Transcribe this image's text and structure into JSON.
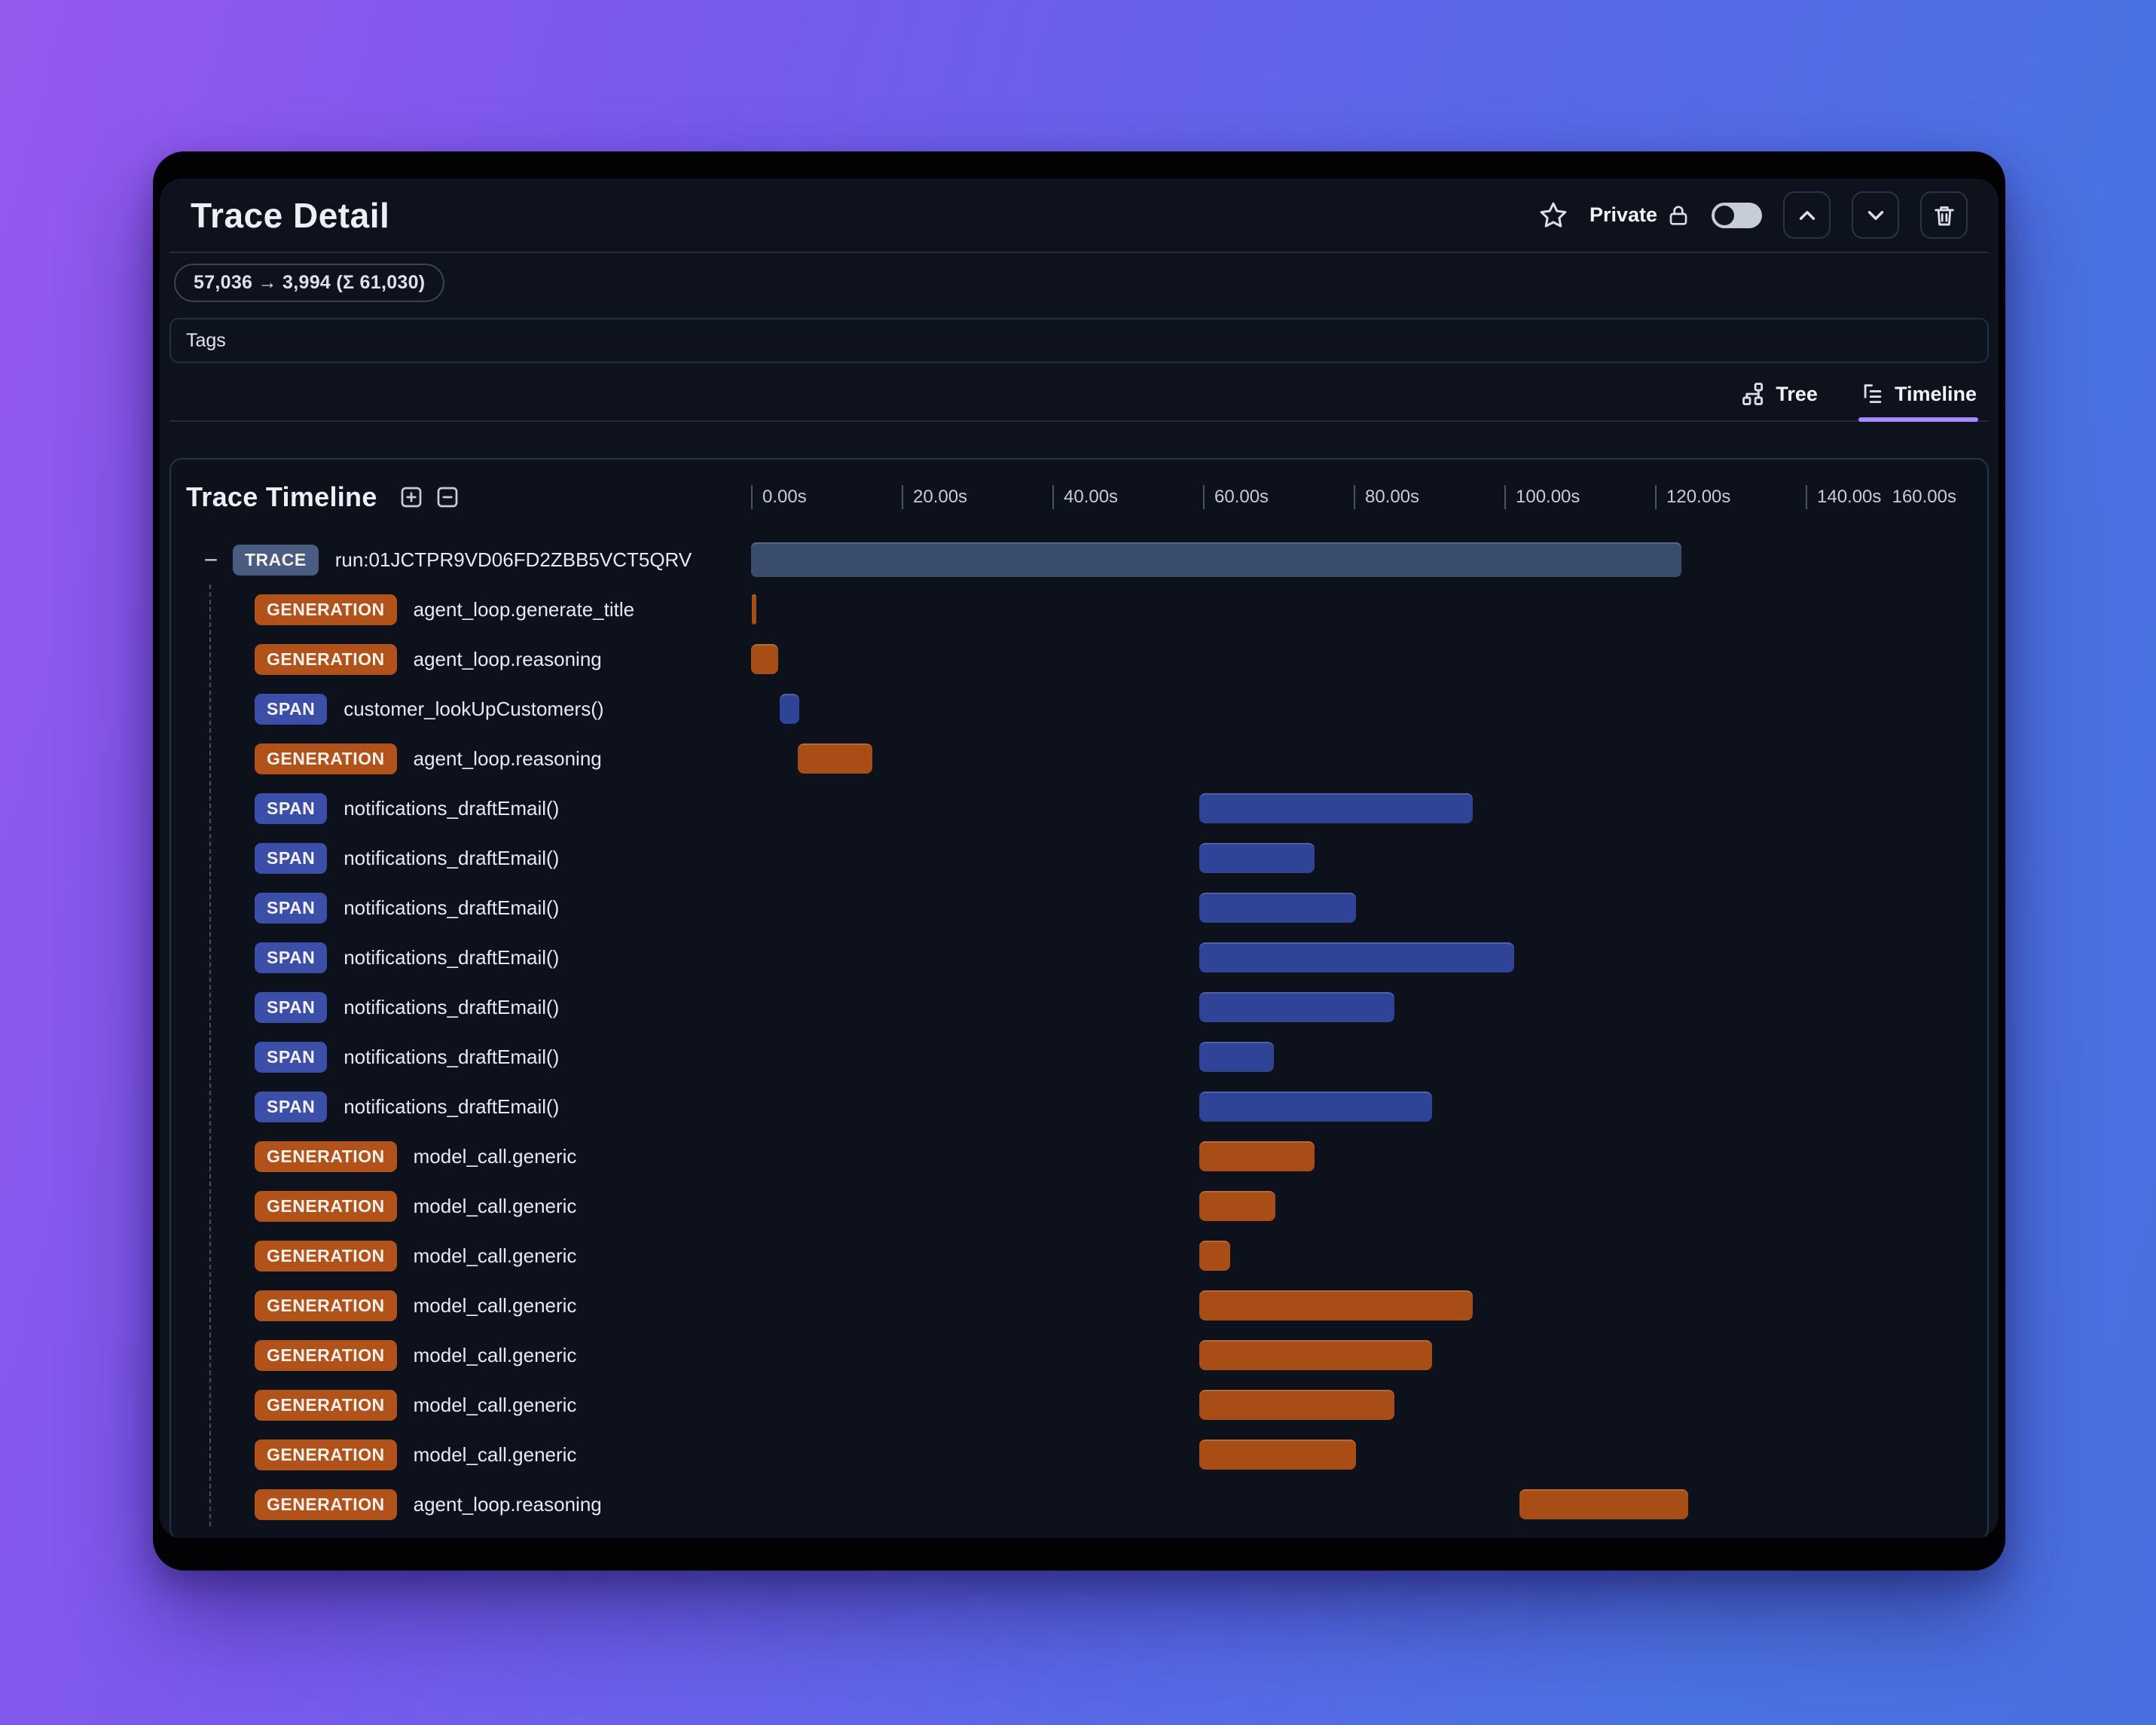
{
  "trace_header": {
    "title": "Trace Detail",
    "privacy": {
      "label": "Private",
      "toggle_state": "off"
    }
  },
  "token_usage_badge": "57,036 → 3,994 (Σ 61,030)",
  "tags_input": {
    "label": "Tags"
  },
  "view_tabs": [
    {
      "id": "tree",
      "label": "Tree",
      "icon": "tree-icon",
      "active": false
    },
    {
      "id": "timeline",
      "label": "Timeline",
      "icon": "list-tree-icon",
      "active": true
    }
  ],
  "timeline_panel": {
    "title": "Trace Timeline",
    "axis": {
      "unit": "s",
      "max_s": 160,
      "tick_step_s": 20,
      "ticks": [
        {
          "label": "0.00s",
          "t": 0
        },
        {
          "label": "20.00s",
          "t": 20
        },
        {
          "label": "40.00s",
          "t": 40
        },
        {
          "label": "60.00s",
          "t": 60
        },
        {
          "label": "80.00s",
          "t": 80
        },
        {
          "label": "100.00s",
          "t": 100
        },
        {
          "label": "120.00s",
          "t": 120
        },
        {
          "label": "140.00s",
          "t": 140
        },
        {
          "label": "160.00s",
          "t": 160,
          "no_tick_line": true,
          "right_align": true
        }
      ]
    },
    "span_types": {
      "TRACE": {
        "badge_bg": "#4A5C80",
        "bar_bg": "#3A4C6C"
      },
      "GENERATION": {
        "badge_bg": "#B0521A",
        "bar_bg": "#A84D15"
      },
      "SPAN": {
        "badge_bg": "#3B4EA8",
        "bar_bg": "#2F4397"
      }
    },
    "rows": [
      {
        "type": "TRACE",
        "name": "run:01JCTPR9VD06FD2ZBB5VCT5QRV",
        "start_s": 0,
        "end_s": 123.5,
        "depth": 0,
        "collapse_glyph": "−"
      },
      {
        "type": "GENERATION",
        "name": "agent_loop.generate_title",
        "start_s": 0.1,
        "end_s": 0.7,
        "depth": 1
      },
      {
        "type": "GENERATION",
        "name": "agent_loop.reasoning",
        "start_s": 0,
        "end_s": 3.6,
        "depth": 1
      },
      {
        "type": "SPAN",
        "name": "customer_lookUpCustomers()",
        "start_s": 3.8,
        "end_s": 6.4,
        "depth": 1
      },
      {
        "type": "GENERATION",
        "name": "agent_loop.reasoning",
        "start_s": 6.2,
        "end_s": 16.1,
        "depth": 1
      },
      {
        "type": "SPAN",
        "name": "notifications_draftEmail()",
        "start_s": 59.5,
        "end_s": 95.8,
        "depth": 1
      },
      {
        "type": "SPAN",
        "name": "notifications_draftEmail()",
        "start_s": 59.5,
        "end_s": 74.8,
        "depth": 1
      },
      {
        "type": "SPAN",
        "name": "notifications_draftEmail()",
        "start_s": 59.5,
        "end_s": 80.3,
        "depth": 1
      },
      {
        "type": "SPAN",
        "name": "notifications_draftEmail()",
        "start_s": 59.5,
        "end_s": 101.3,
        "depth": 1
      },
      {
        "type": "SPAN",
        "name": "notifications_draftEmail()",
        "start_s": 59.5,
        "end_s": 85.4,
        "depth": 1
      },
      {
        "type": "SPAN",
        "name": "notifications_draftEmail()",
        "start_s": 59.5,
        "end_s": 69.4,
        "depth": 1
      },
      {
        "type": "SPAN",
        "name": "notifications_draftEmail()",
        "start_s": 59.5,
        "end_s": 90.4,
        "depth": 1
      },
      {
        "type": "GENERATION",
        "name": "model_call.generic",
        "start_s": 59.5,
        "end_s": 74.8,
        "depth": 1
      },
      {
        "type": "GENERATION",
        "name": "model_call.generic",
        "start_s": 59.5,
        "end_s": 69.6,
        "depth": 1
      },
      {
        "type": "GENERATION",
        "name": "model_call.generic",
        "start_s": 59.5,
        "end_s": 63.6,
        "depth": 1
      },
      {
        "type": "GENERATION",
        "name": "model_call.generic",
        "start_s": 59.5,
        "end_s": 95.8,
        "depth": 1
      },
      {
        "type": "GENERATION",
        "name": "model_call.generic",
        "start_s": 59.5,
        "end_s": 90.4,
        "depth": 1
      },
      {
        "type": "GENERATION",
        "name": "model_call.generic",
        "start_s": 59.5,
        "end_s": 85.4,
        "depth": 1
      },
      {
        "type": "GENERATION",
        "name": "model_call.generic",
        "start_s": 59.5,
        "end_s": 80.3,
        "depth": 1
      },
      {
        "type": "GENERATION",
        "name": "agent_loop.reasoning",
        "start_s": 102.0,
        "end_s": 124.4,
        "depth": 1
      }
    ]
  },
  "colors": {
    "accent_underline": "#A78BFA",
    "background_gradient_start": "#9659EE",
    "background_gradient_end": "#4A6FE0",
    "window_bg": "#0D121D"
  }
}
